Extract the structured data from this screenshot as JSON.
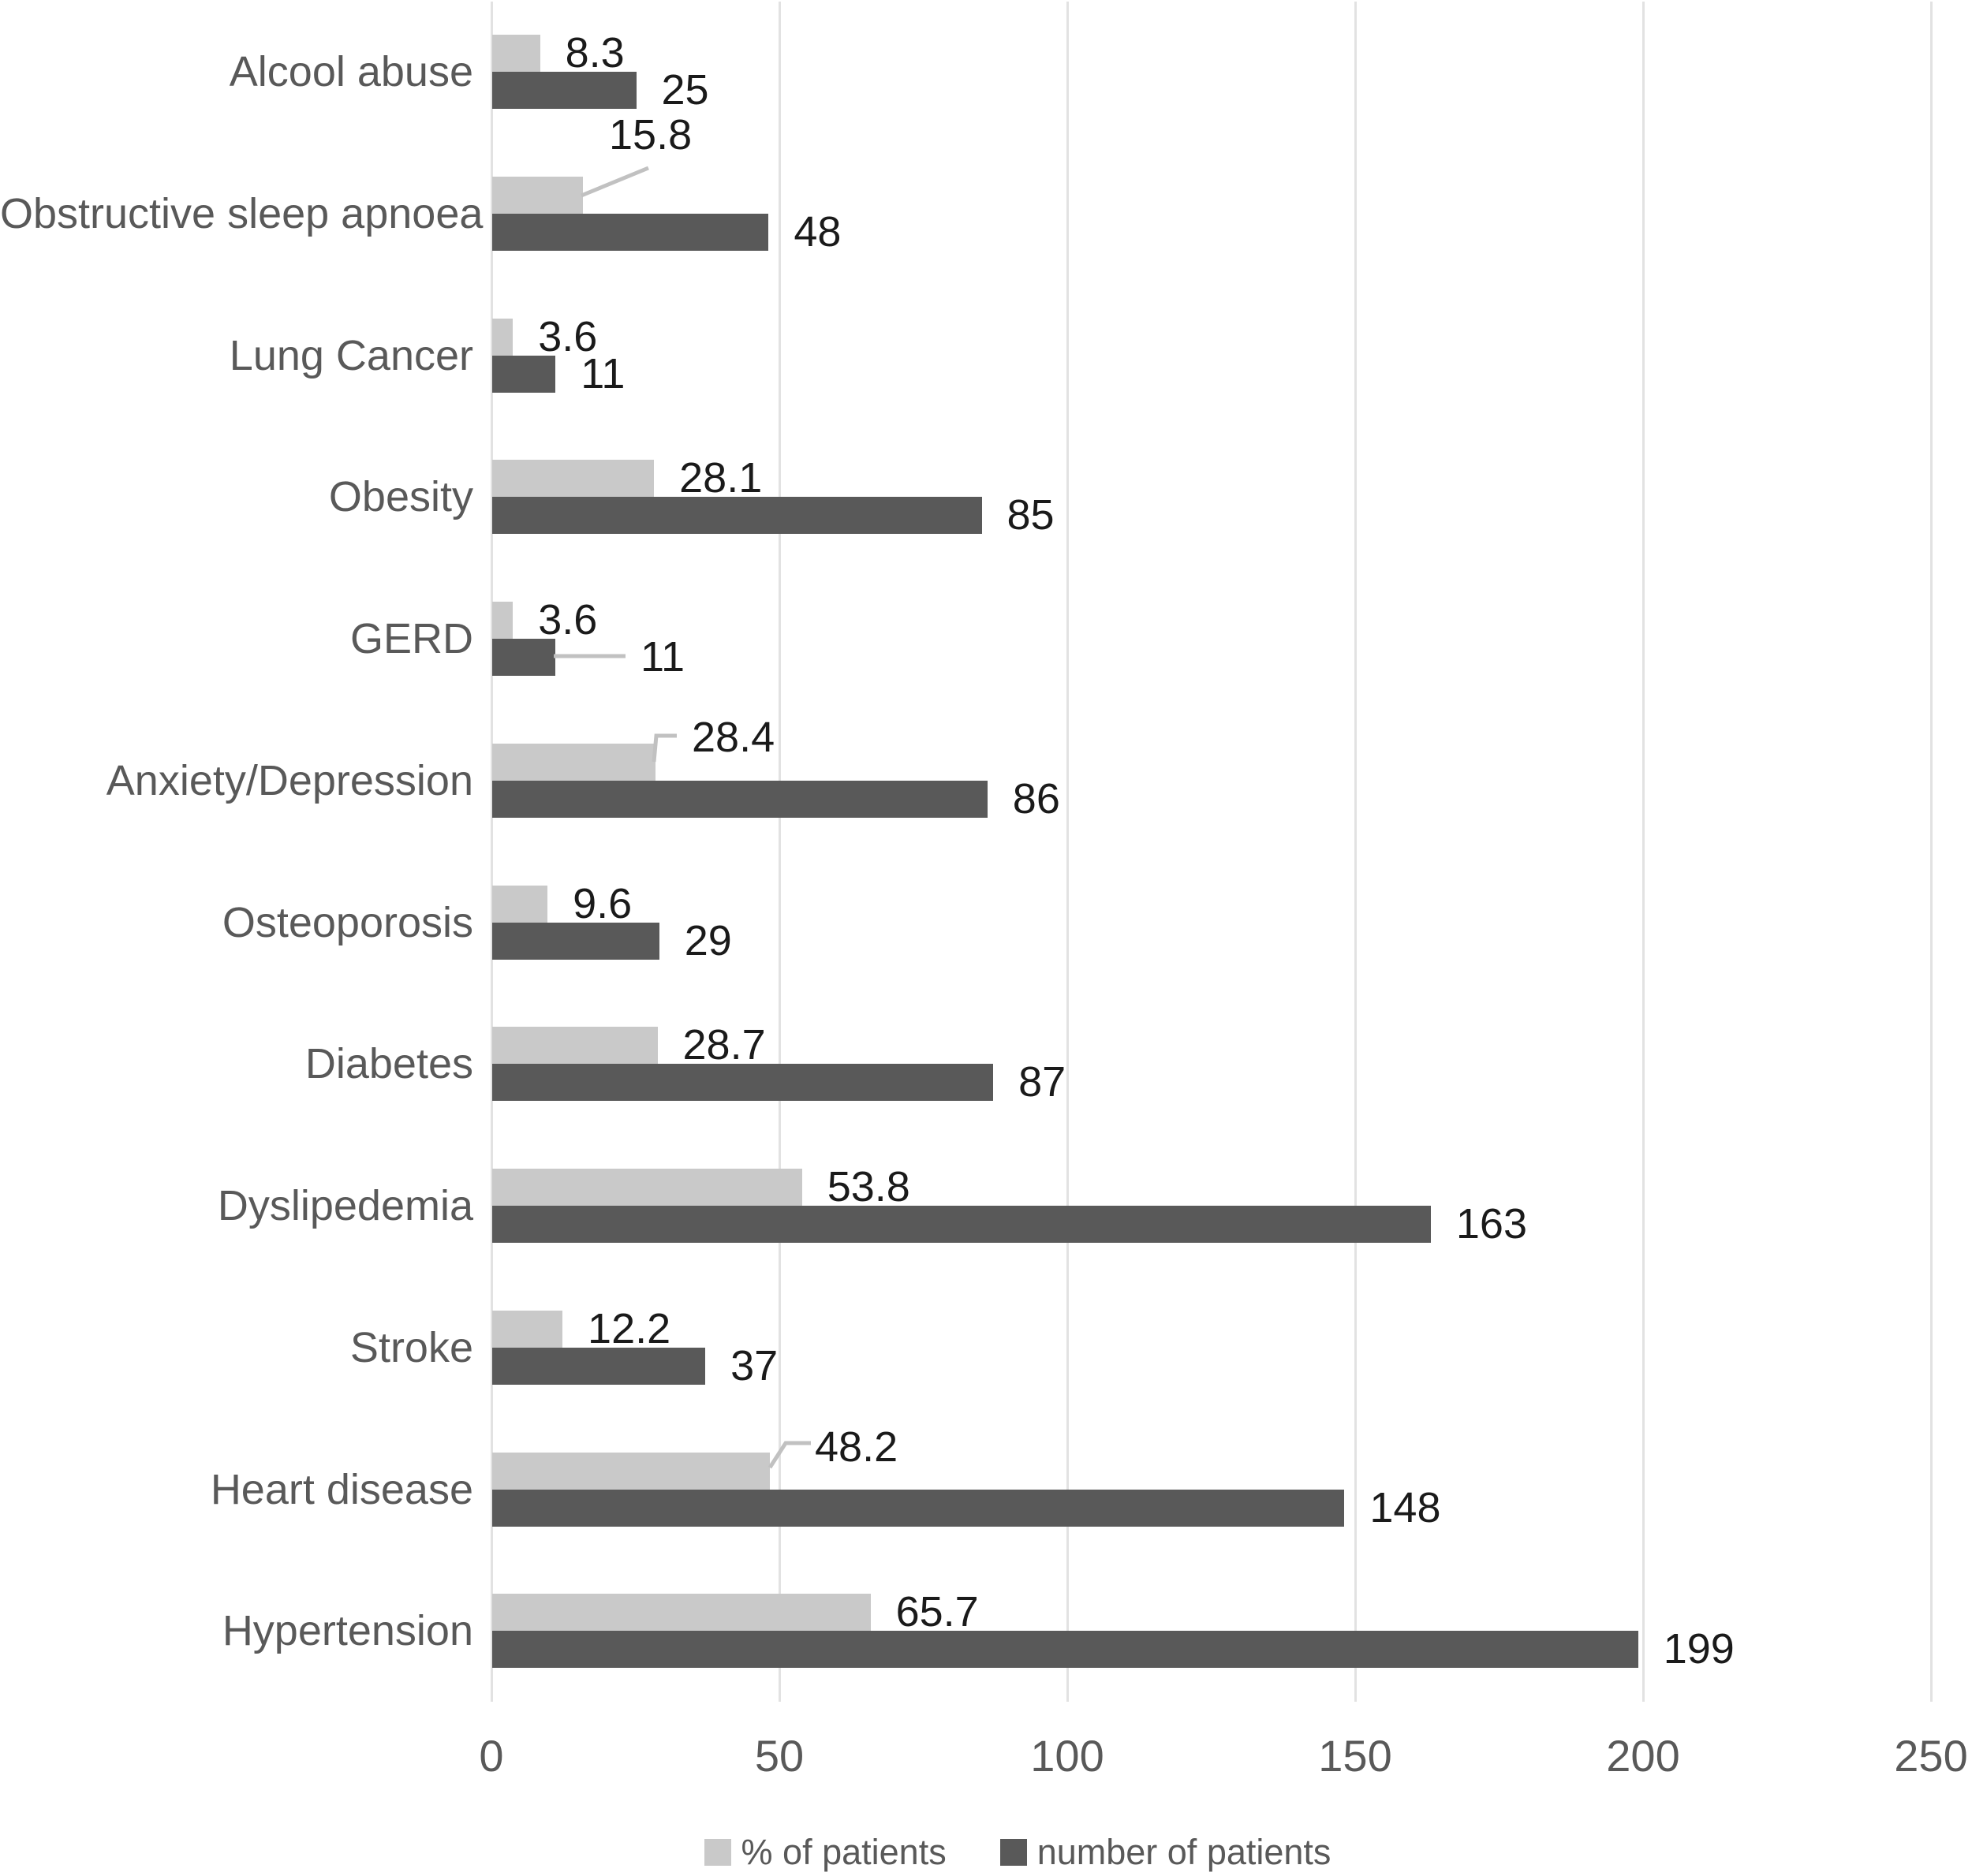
{
  "chart_data": {
    "type": "bar",
    "orientation": "horizontal",
    "title": "",
    "xlabel": "",
    "ylabel": "",
    "xlim": [
      0,
      250
    ],
    "x_ticks": [
      0,
      50,
      100,
      150,
      200,
      250
    ],
    "grid": "vertical",
    "legend_position": "bottom-center",
    "categories": [
      "Alcool abuse",
      "Obstructive sleep apnoea",
      "Lung Cancer",
      "Obesity",
      "GERD",
      "Anxiety/Depression",
      "Osteoporosis",
      "Diabetes",
      "Dyslipedemia",
      "Stroke",
      "Heart disease",
      "Hypertension"
    ],
    "series": [
      {
        "name": "% of patients",
        "color": "#c9c9c9",
        "values": [
          8.3,
          15.8,
          3.6,
          28.1,
          3.6,
          28.4,
          9.6,
          28.7,
          53.8,
          12.2,
          48.2,
          65.7
        ]
      },
      {
        "name": "number of patients",
        "color": "#595959",
        "values": [
          25,
          48,
          11,
          85,
          11,
          86,
          29,
          87,
          163,
          37,
          148,
          199
        ]
      }
    ]
  },
  "colors": {
    "background": "#ffffff",
    "gridline": "#e2e2e2",
    "pct_bar": "#c9c9c9",
    "num_bar": "#595959",
    "value_label_text": "#1a1a1a",
    "axis_text": "#595959",
    "leader_line": "#c1c1c1"
  }
}
